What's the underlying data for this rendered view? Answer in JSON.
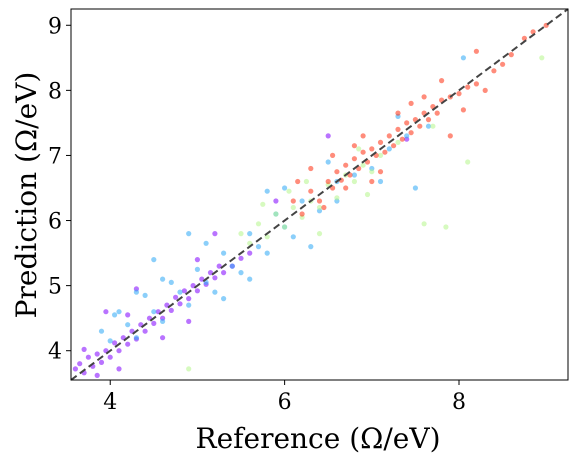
{
  "chart_data": {
    "type": "scatter",
    "title": "",
    "xlabel": "Reference (Ω/eV)",
    "ylabel": "Prediction (Ω/eV)",
    "xlim": [
      3.55,
      9.25
    ],
    "ylim": [
      3.55,
      9.25
    ],
    "xticks": [
      4,
      6,
      8
    ],
    "yticks": [
      4,
      5,
      6,
      7,
      8,
      9
    ],
    "grid": false,
    "legend": "none",
    "reference_line": {
      "style": "dashed",
      "color": "#444444",
      "points": [
        [
          3.55,
          3.55
        ],
        [
          9.25,
          9.25
        ]
      ]
    },
    "series": [
      {
        "color": "#8000ff",
        "points": [
          [
            3.6,
            3.72
          ],
          [
            3.65,
            3.8
          ],
          [
            3.7,
            3.66
          ],
          [
            3.75,
            3.9
          ],
          [
            3.8,
            3.76
          ],
          [
            3.85,
            3.95
          ],
          [
            3.9,
            3.82
          ],
          [
            3.95,
            4.0
          ],
          [
            4.0,
            3.9
          ],
          [
            4.05,
            4.12
          ],
          [
            4.1,
            4.0
          ],
          [
            4.15,
            4.2
          ],
          [
            4.2,
            4.1
          ],
          [
            4.25,
            4.3
          ],
          [
            4.3,
            4.18
          ],
          [
            4.35,
            4.4
          ],
          [
            4.4,
            4.3
          ],
          [
            4.45,
            4.5
          ],
          [
            4.5,
            4.42
          ],
          [
            4.55,
            4.6
          ],
          [
            4.6,
            4.5
          ],
          [
            4.65,
            4.7
          ],
          [
            4.7,
            4.62
          ],
          [
            4.75,
            4.82
          ],
          [
            4.8,
            4.72
          ],
          [
            4.85,
            4.92
          ],
          [
            4.9,
            4.8
          ],
          [
            4.95,
            5.0
          ],
          [
            5.0,
            4.92
          ],
          [
            5.05,
            5.1
          ],
          [
            5.1,
            5.02
          ],
          [
            5.15,
            5.2
          ],
          [
            5.2,
            5.12
          ],
          [
            5.25,
            5.3
          ],
          [
            5.3,
            5.2
          ],
          [
            5.4,
            5.3
          ],
          [
            5.5,
            5.42
          ],
          [
            5.6,
            5.5
          ],
          [
            3.95,
            4.6
          ],
          [
            4.1,
            3.72
          ],
          [
            4.3,
            4.95
          ],
          [
            5.2,
            5.8
          ],
          [
            4.9,
            4.45
          ],
          [
            3.85,
            3.62
          ],
          [
            4.6,
            4.2
          ],
          [
            5.0,
            5.4
          ],
          [
            4.2,
            4.55
          ],
          [
            3.7,
            4.02
          ],
          [
            6.5,
            7.3
          ],
          [
            7.4,
            7.25
          ],
          [
            5.9,
            6.3
          ]
        ]
      },
      {
        "color": "#2ca7f5",
        "points": [
          [
            3.9,
            4.3
          ],
          [
            4.0,
            4.15
          ],
          [
            4.1,
            4.6
          ],
          [
            4.2,
            4.4
          ],
          [
            4.3,
            4.2
          ],
          [
            4.4,
            4.85
          ],
          [
            4.5,
            4.6
          ],
          [
            4.6,
            4.45
          ],
          [
            4.7,
            5.05
          ],
          [
            4.8,
            4.9
          ],
          [
            4.9,
            4.7
          ],
          [
            5.0,
            5.25
          ],
          [
            5.1,
            5.05
          ],
          [
            5.2,
            4.9
          ],
          [
            5.3,
            5.5
          ],
          [
            5.4,
            5.3
          ],
          [
            5.5,
            5.2
          ],
          [
            5.6,
            5.8
          ],
          [
            5.7,
            5.6
          ],
          [
            5.8,
            5.5
          ],
          [
            5.9,
            6.1
          ],
          [
            6.0,
            5.9
          ],
          [
            6.1,
            5.75
          ],
          [
            6.2,
            6.3
          ],
          [
            6.4,
            6.15
          ],
          [
            6.6,
            6.6
          ],
          [
            6.8,
            6.7
          ],
          [
            7.0,
            6.8
          ],
          [
            7.2,
            7.1
          ],
          [
            7.4,
            7.3
          ],
          [
            4.5,
            5.4
          ],
          [
            4.9,
            5.8
          ],
          [
            5.3,
            4.8
          ],
          [
            5.6,
            5.1
          ],
          [
            6.0,
            6.5
          ],
          [
            6.3,
            5.6
          ],
          [
            7.3,
            7.6
          ],
          [
            7.5,
            6.5
          ],
          [
            8.05,
            8.5
          ],
          [
            7.1,
            6.6
          ],
          [
            5.8,
            6.45
          ],
          [
            4.3,
            4.9
          ],
          [
            4.6,
            5.1
          ],
          [
            5.1,
            5.65
          ],
          [
            6.6,
            6.3
          ],
          [
            7.65,
            7.45
          ],
          [
            6.5,
            6.9
          ],
          [
            4.05,
            4.55
          ]
        ]
      },
      {
        "color": "#b5f58a",
        "points": [
          [
            5.5,
            5.8
          ],
          [
            5.6,
            5.65
          ],
          [
            5.7,
            5.95
          ],
          [
            5.8,
            5.75
          ],
          [
            5.9,
            6.1
          ],
          [
            6.0,
            5.9
          ],
          [
            6.1,
            6.2
          ],
          [
            6.2,
            6.05
          ],
          [
            6.3,
            6.3
          ],
          [
            6.4,
            6.2
          ],
          [
            6.5,
            6.55
          ],
          [
            6.6,
            6.35
          ],
          [
            6.7,
            6.7
          ],
          [
            6.8,
            6.6
          ],
          [
            6.9,
            6.85
          ],
          [
            7.0,
            6.75
          ],
          [
            7.1,
            7.0
          ],
          [
            7.3,
            7.2
          ],
          [
            7.6,
            5.95
          ],
          [
            8.1,
            6.9
          ],
          [
            8.95,
            8.5
          ],
          [
            4.9,
            3.72
          ],
          [
            6.25,
            6.6
          ],
          [
            6.85,
            7.1
          ],
          [
            5.75,
            6.25
          ],
          [
            6.4,
            5.8
          ],
          [
            7.85,
            5.9
          ],
          [
            6.05,
            6.45
          ],
          [
            6.95,
            6.4
          ],
          [
            7.7,
            7.45
          ]
        ]
      },
      {
        "color": "#ff2d0f",
        "points": [
          [
            6.1,
            6.3
          ],
          [
            6.2,
            6.1
          ],
          [
            6.3,
            6.45
          ],
          [
            6.4,
            6.3
          ],
          [
            6.5,
            6.6
          ],
          [
            6.55,
            6.5
          ],
          [
            6.6,
            6.75
          ],
          [
            6.65,
            6.62
          ],
          [
            6.7,
            6.85
          ],
          [
            6.75,
            6.7
          ],
          [
            6.8,
            6.95
          ],
          [
            6.85,
            6.8
          ],
          [
            6.9,
            7.05
          ],
          [
            6.95,
            6.9
          ],
          [
            7.0,
            7.1
          ],
          [
            7.05,
            7.0
          ],
          [
            7.1,
            7.2
          ],
          [
            7.15,
            7.05
          ],
          [
            7.2,
            7.3
          ],
          [
            7.25,
            7.15
          ],
          [
            7.3,
            7.4
          ],
          [
            7.35,
            7.25
          ],
          [
            7.4,
            7.5
          ],
          [
            7.45,
            7.35
          ],
          [
            7.5,
            7.55
          ],
          [
            7.55,
            7.45
          ],
          [
            7.6,
            7.65
          ],
          [
            7.65,
            7.55
          ],
          [
            7.7,
            7.75
          ],
          [
            7.75,
            7.65
          ],
          [
            7.8,
            7.85
          ],
          [
            7.9,
            7.9
          ],
          [
            8.0,
            7.95
          ],
          [
            8.1,
            8.05
          ],
          [
            8.2,
            8.1
          ],
          [
            8.3,
            8.0
          ],
          [
            8.4,
            8.3
          ],
          [
            8.5,
            8.4
          ],
          [
            8.6,
            8.55
          ],
          [
            8.75,
            8.8
          ],
          [
            9.0,
            9.0
          ],
          [
            6.45,
            6.2
          ],
          [
            6.9,
            7.3
          ],
          [
            7.3,
            7.65
          ],
          [
            6.7,
            6.5
          ],
          [
            7.6,
            7.9
          ],
          [
            6.3,
            6.8
          ],
          [
            7.9,
            7.3
          ],
          [
            8.2,
            8.6
          ],
          [
            6.55,
            7.0
          ],
          [
            7.1,
            6.75
          ],
          [
            7.8,
            8.15
          ],
          [
            6.15,
            6.6
          ],
          [
            8.05,
            7.7
          ],
          [
            8.85,
            8.9
          ],
          [
            7.45,
            7.8
          ],
          [
            6.8,
            7.15
          ],
          [
            7.0,
            6.6
          ]
        ]
      }
    ]
  }
}
